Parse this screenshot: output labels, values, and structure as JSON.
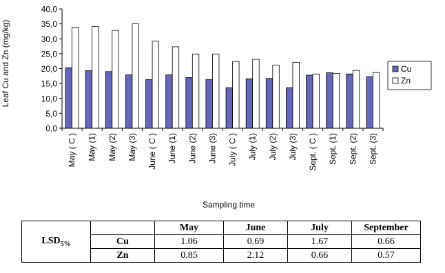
{
  "chart_data": {
    "type": "bar",
    "ylabel": "Leaf Cu and Zn (mg/kg)",
    "xlabel": "Sampling time",
    "ylim": [
      0,
      40
    ],
    "yticks": [
      "0,0",
      "5,0",
      "10,0",
      "15,0",
      "20,0",
      "25,0",
      "30,0",
      "35,0",
      "40,0"
    ],
    "categories": [
      "May ( C )",
      "May (1)",
      "May (2)",
      "May (3)",
      "June ( C )",
      "June (1)",
      "June (2)",
      "June (3)",
      "July ( C )",
      "July (1)",
      "July (2)",
      "July (3)",
      "Sept. ( C )",
      "Sept. (1)",
      "Sept. (2)",
      "Sept. (3)"
    ],
    "series": [
      {
        "name": "Cu",
        "color": "#6666bb",
        "values": [
          20.3,
          19.3,
          19.0,
          17.9,
          16.3,
          17.9,
          17.0,
          16.3,
          13.6,
          16.6,
          16.7,
          13.6,
          17.8,
          18.6,
          18.2,
          17.3
        ]
      },
      {
        "name": "Zn",
        "color": "#ffffff",
        "values": [
          33.8,
          34.1,
          32.8,
          35.0,
          29.2,
          27.3,
          24.9,
          24.9,
          22.4,
          23.1,
          21.2,
          22.1,
          18.2,
          18.4,
          19.4,
          18.7
        ]
      }
    ],
    "legend": "right",
    "grid": false
  },
  "table": {
    "row_label_main": "LSD",
    "row_label_sub": "5%",
    "headers": [
      "May",
      "June",
      "July",
      "September"
    ],
    "rows": [
      {
        "label": "Cu",
        "values": [
          "1.06",
          "0.69",
          "1.67",
          "0.66"
        ]
      },
      {
        "label": "Zn",
        "values": [
          "0.85",
          "2.12",
          "0.66",
          "0.57"
        ]
      }
    ]
  }
}
